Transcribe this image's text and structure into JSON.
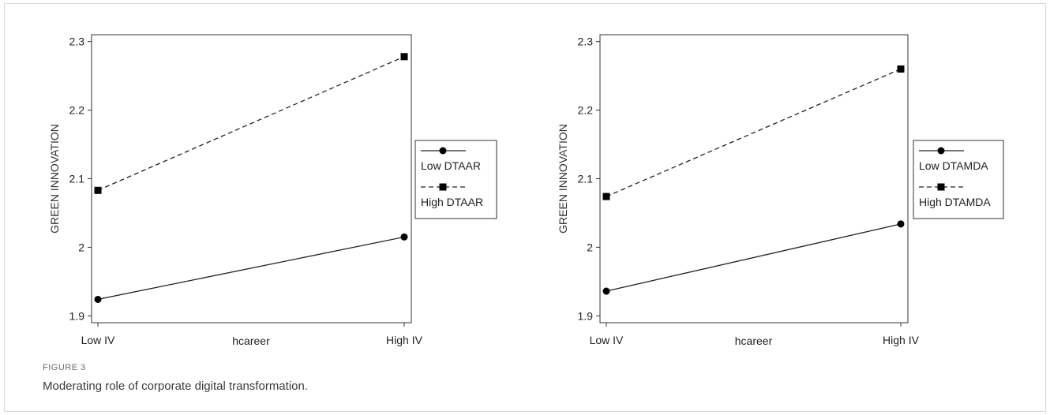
{
  "figure": {
    "label": "FIGURE 3",
    "caption": "Moderating role of corporate digital transformation."
  },
  "chart_data": [
    {
      "type": "line",
      "title": "",
      "xlabel": "hcareer",
      "ylabel": "GREEN INNOVATION",
      "categories": [
        "Low IV",
        "High IV"
      ],
      "yticks": [
        "1.9",
        "2",
        "2.1",
        "2.2",
        "2.3"
      ],
      "ylim": [
        1.89,
        2.31
      ],
      "grid": false,
      "legend_position": "right",
      "series": [
        {
          "name": "Low DTAAR",
          "values": [
            1.924,
            2.015
          ],
          "marker": "circle",
          "line": "solid"
        },
        {
          "name": "High DTAAR",
          "values": [
            2.083,
            2.278
          ],
          "marker": "square",
          "line": "dashed"
        }
      ]
    },
    {
      "type": "line",
      "title": "",
      "xlabel": "hcareer",
      "ylabel": "GREEN INNOVATION",
      "categories": [
        "Low IV",
        "High IV"
      ],
      "yticks": [
        "1.9",
        "2",
        "2.1",
        "2.2",
        "2.3"
      ],
      "ylim": [
        1.89,
        2.31
      ],
      "grid": false,
      "legend_position": "right",
      "series": [
        {
          "name": "Low DTAMDA",
          "values": [
            1.936,
            2.034
          ],
          "marker": "circle",
          "line": "solid"
        },
        {
          "name": "High DTAMDA",
          "values": [
            2.074,
            2.26
          ],
          "marker": "square",
          "line": "dashed"
        }
      ]
    }
  ]
}
